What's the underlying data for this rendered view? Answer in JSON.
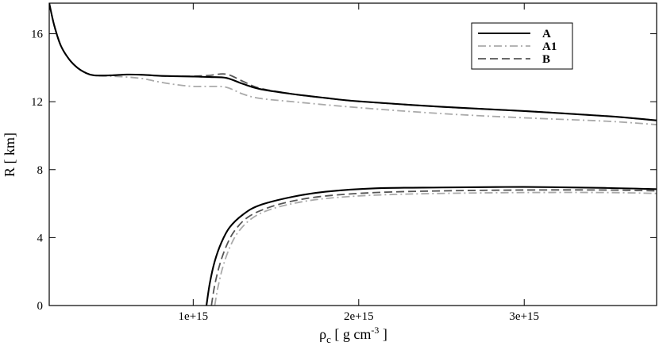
{
  "chart_data": {
    "type": "line",
    "xlabel_main": "ρ",
    "xlabel_sub": "c",
    "xlabel_rest": " [ g cm",
    "xlabel_sup": "-3",
    "xlabel_end": " ]",
    "ylabel": "R [ km]",
    "xlim": [
      130000000000000.0,
      3800000000000000.0
    ],
    "ylim": [
      0,
      17.8
    ],
    "x_ticks": [
      {
        "value": 1000000000000000.0,
        "label": "1e+15"
      },
      {
        "value": 2000000000000000.0,
        "label": "2e+15"
      },
      {
        "value": 3000000000000000.0,
        "label": "3e+15"
      }
    ],
    "y_ticks": [
      {
        "value": 0,
        "label": "0"
      },
      {
        "value": 4,
        "label": "4"
      },
      {
        "value": 8,
        "label": "8"
      },
      {
        "value": 12,
        "label": "12"
      },
      {
        "value": 16,
        "label": "16"
      }
    ],
    "legend_position": "top-right",
    "series": [
      {
        "name": "A",
        "color": "#000000",
        "dash": "solid",
        "curves": [
          [
            [
              130000000000000.0,
              17.8
            ],
            [
              160000000000000.0,
              16.5
            ],
            [
              200000000000000.0,
              15.3
            ],
            [
              250000000000000.0,
              14.5
            ],
            [
              300000000000000.0,
              14.0
            ],
            [
              350000000000000.0,
              13.7
            ],
            [
              400000000000000.0,
              13.55
            ],
            [
              500000000000000.0,
              13.55
            ],
            [
              600000000000000.0,
              13.6
            ],
            [
              700000000000000.0,
              13.58
            ],
            [
              800000000000000.0,
              13.52
            ],
            [
              900000000000000.0,
              13.5
            ],
            [
              1000000000000000.0,
              13.48
            ],
            [
              1100000000000000.0,
              13.45
            ],
            [
              1200000000000000.0,
              13.4
            ],
            [
              1300000000000000.0,
              13.05
            ],
            [
              1400000000000000.0,
              12.75
            ],
            [
              1600000000000000.0,
              12.45
            ],
            [
              1800000000000000.0,
              12.22
            ],
            [
              2000000000000000.0,
              12.02
            ],
            [
              2500000000000000.0,
              11.7
            ],
            [
              3000000000000000.0,
              11.45
            ],
            [
              3500000000000000.0,
              11.15
            ],
            [
              3800000000000000.0,
              10.9
            ]
          ],
          [
            [
              1080000000000000.0,
              0.0
            ],
            [
              1100000000000000.0,
              1.3
            ],
            [
              1130000000000000.0,
              2.6
            ],
            [
              1170000000000000.0,
              3.7
            ],
            [
              1220000000000000.0,
              4.6
            ],
            [
              1300000000000000.0,
              5.35
            ],
            [
              1400000000000000.0,
              5.9
            ],
            [
              1600000000000000.0,
              6.4
            ],
            [
              1800000000000000.0,
              6.7
            ],
            [
              2100000000000000.0,
              6.9
            ],
            [
              2500000000000000.0,
              6.95
            ],
            [
              3000000000000000.0,
              6.98
            ],
            [
              3500000000000000.0,
              6.92
            ],
            [
              3800000000000000.0,
              6.85
            ]
          ]
        ]
      },
      {
        "name": "A1",
        "color": "#aaaaaa",
        "dash": "dashdot",
        "curves": [
          [
            [
              130000000000000.0,
              17.8
            ],
            [
              160000000000000.0,
              16.5
            ],
            [
              200000000000000.0,
              15.3
            ],
            [
              250000000000000.0,
              14.5
            ],
            [
              300000000000000.0,
              14.0
            ],
            [
              350000000000000.0,
              13.7
            ],
            [
              400000000000000.0,
              13.55
            ],
            [
              500000000000000.0,
              13.5
            ],
            [
              600000000000000.0,
              13.45
            ],
            [
              700000000000000.0,
              13.35
            ],
            [
              800000000000000.0,
              13.15
            ],
            [
              900000000000000.0,
              13.0
            ],
            [
              1000000000000000.0,
              12.9
            ],
            [
              1100000000000000.0,
              12.9
            ],
            [
              1200000000000000.0,
              12.85
            ],
            [
              1300000000000000.0,
              12.45
            ],
            [
              1400000000000000.0,
              12.2
            ],
            [
              1600000000000000.0,
              12.0
            ],
            [
              2000000000000000.0,
              11.65
            ],
            [
              2500000000000000.0,
              11.3
            ],
            [
              3000000000000000.0,
              11.05
            ],
            [
              3500000000000000.0,
              10.85
            ],
            [
              3800000000000000.0,
              10.65
            ]
          ],
          [
            [
              1130000000000000.0,
              0.0
            ],
            [
              1150000000000000.0,
              1.1
            ],
            [
              1180000000000000.0,
              2.3
            ],
            [
              1220000000000000.0,
              3.4
            ],
            [
              1270000000000000.0,
              4.3
            ],
            [
              1350000000000000.0,
              5.1
            ],
            [
              1450000000000000.0,
              5.6
            ],
            [
              1600000000000000.0,
              6.0
            ],
            [
              1800000000000000.0,
              6.3
            ],
            [
              2100000000000000.0,
              6.5
            ],
            [
              2500000000000000.0,
              6.6
            ],
            [
              3000000000000000.0,
              6.65
            ],
            [
              3500000000000000.0,
              6.65
            ],
            [
              3800000000000000.0,
              6.6
            ]
          ]
        ]
      },
      {
        "name": "B",
        "color": "#555555",
        "dash": "dashed",
        "curves": [
          [
            [
              130000000000000.0,
              17.8
            ],
            [
              160000000000000.0,
              16.5
            ],
            [
              200000000000000.0,
              15.3
            ],
            [
              250000000000000.0,
              14.5
            ],
            [
              300000000000000.0,
              14.0
            ],
            [
              350000000000000.0,
              13.7
            ],
            [
              400000000000000.0,
              13.55
            ],
            [
              500000000000000.0,
              13.55
            ],
            [
              600000000000000.0,
              13.6
            ],
            [
              700000000000000.0,
              13.58
            ],
            [
              800000000000000.0,
              13.52
            ],
            [
              900000000000000.0,
              13.5
            ],
            [
              1000000000000000.0,
              13.5
            ],
            [
              1100000000000000.0,
              13.55
            ],
            [
              1200000000000000.0,
              13.62
            ],
            [
              1300000000000000.0,
              13.2
            ],
            [
              1400000000000000.0,
              12.8
            ],
            [
              1600000000000000.0,
              12.45
            ],
            [
              1800000000000000.0,
              12.22
            ],
            [
              2000000000000000.0,
              12.02
            ],
            [
              2500000000000000.0,
              11.7
            ],
            [
              3000000000000000.0,
              11.45
            ],
            [
              3500000000000000.0,
              11.15
            ],
            [
              3800000000000000.0,
              10.9
            ]
          ],
          [
            [
              1110000000000000.0,
              0.0
            ],
            [
              1130000000000000.0,
              1.2
            ],
            [
              1160000000000000.0,
              2.4
            ],
            [
              1200000000000000.0,
              3.5
            ],
            [
              1250000000000000.0,
              4.4
            ],
            [
              1330000000000000.0,
              5.2
            ],
            [
              1450000000000000.0,
              5.75
            ],
            [
              1600000000000000.0,
              6.15
            ],
            [
              1800000000000000.0,
              6.45
            ],
            [
              2100000000000000.0,
              6.65
            ],
            [
              2500000000000000.0,
              6.75
            ],
            [
              3000000000000000.0,
              6.8
            ],
            [
              3500000000000000.0,
              6.8
            ],
            [
              3800000000000000.0,
              6.75
            ]
          ]
        ]
      }
    ]
  }
}
